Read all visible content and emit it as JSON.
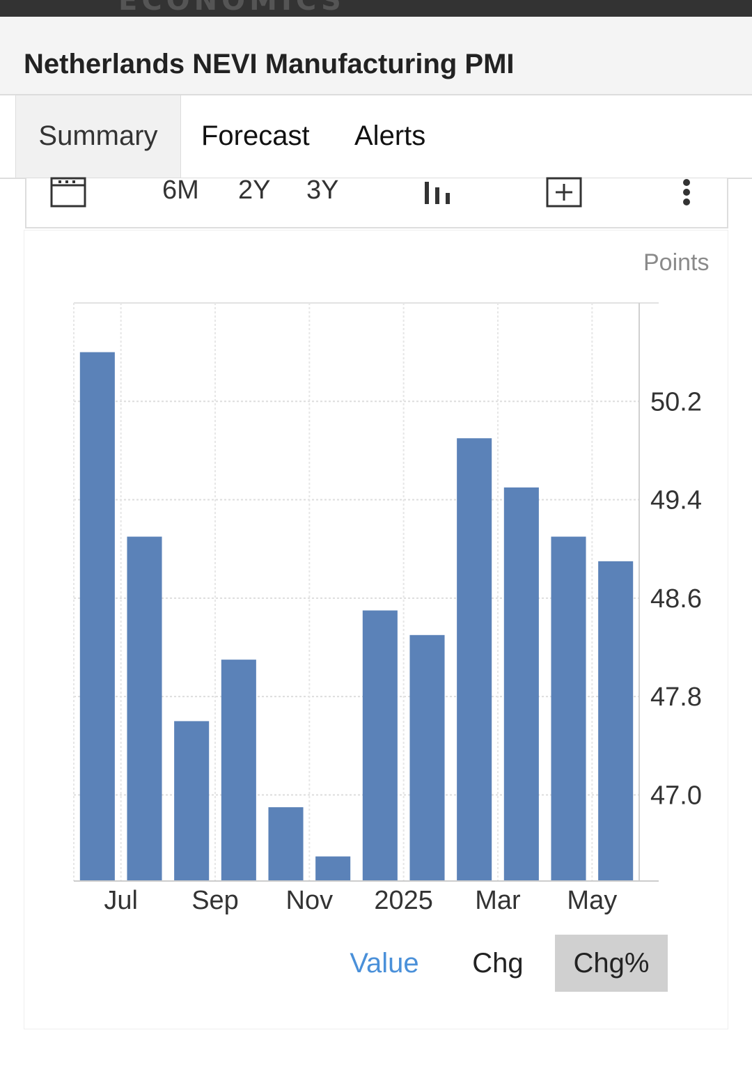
{
  "brand": "ECONOMICS",
  "page": {
    "title": "Netherlands NEVI Manufacturing PMI"
  },
  "tabs": [
    {
      "label": "Summary",
      "active": true
    },
    {
      "label": "Forecast",
      "active": false
    },
    {
      "label": "Alerts",
      "active": false
    }
  ],
  "toolbar": {
    "calendar_icon": "calendar-icon",
    "ranges": [
      "6M",
      "2Y",
      "3Y"
    ],
    "chart_type_icon": "bar-chart-icon",
    "add_icon": "plus-square-icon",
    "more_icon": "vertical-dots-icon"
  },
  "chart_data": {
    "type": "bar",
    "unit_label": "Points",
    "x_tick_labels": [
      "Jul",
      "Sep",
      "Nov",
      "2025",
      "Mar",
      "May"
    ],
    "y_ticks": [
      47.0,
      47.8,
      48.6,
      49.4,
      50.2
    ],
    "ylim": [
      46.3,
      51.0
    ],
    "grid": true,
    "bar_color": "#5b82b8",
    "series": [
      {
        "values": [
          50.6,
          49.1,
          47.6,
          48.1,
          46.9,
          46.5,
          48.5,
          48.3,
          49.9,
          49.5,
          49.1,
          48.9
        ]
      }
    ]
  },
  "controls": {
    "value_label": "Value",
    "chg_label": "Chg",
    "chg_pct_label": "Chg%",
    "active_color": "#4a90d9"
  }
}
